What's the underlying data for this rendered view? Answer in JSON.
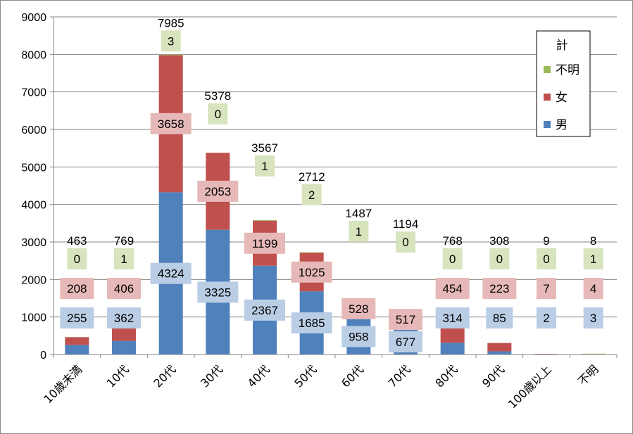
{
  "chart_data": {
    "type": "bar",
    "stacked": true,
    "categories": [
      "10歳未満",
      "10代",
      "20代",
      "30代",
      "40代",
      "50代",
      "60代",
      "70代",
      "80代",
      "90代",
      "100歳以上",
      "不明"
    ],
    "series": [
      {
        "name": "男",
        "values": [
          255,
          362,
          4324,
          3325,
          2367,
          1685,
          958,
          677,
          314,
          85,
          2,
          3
        ],
        "color": "#4f81bd",
        "label_bg": "#b9cde5"
      },
      {
        "name": "女",
        "values": [
          208,
          406,
          3658,
          2053,
          1199,
          1025,
          528,
          517,
          454,
          223,
          7,
          4
        ],
        "color": "#c0504d",
        "label_bg": "#e6b9b8"
      },
      {
        "name": "不明",
        "values": [
          0,
          1,
          3,
          0,
          1,
          2,
          1,
          0,
          0,
          0,
          0,
          1
        ],
        "color": "#9bbb59",
        "label_bg": "#d7e4bd"
      }
    ],
    "totals": [
      463,
      769,
      7985,
      5378,
      3567,
      2712,
      1487,
      1194,
      768,
      308,
      9,
      8
    ],
    "ylim": [
      0,
      9000
    ],
    "yticks": [
      0,
      1000,
      2000,
      3000,
      4000,
      5000,
      6000,
      7000,
      8000,
      9000
    ],
    "grid": true,
    "legend": {
      "title": "計",
      "position": "top-right",
      "order": [
        "不明",
        "女",
        "男"
      ]
    },
    "title": "",
    "xlabel": "",
    "ylabel": ""
  }
}
